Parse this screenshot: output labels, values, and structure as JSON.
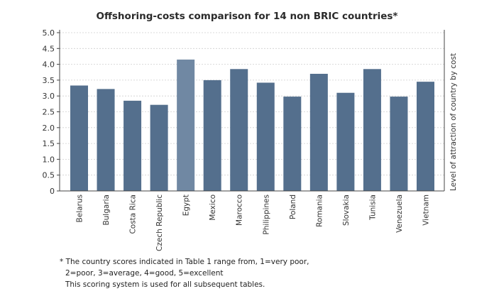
{
  "chart_data": {
    "type": "bar",
    "title": "Offshoring-costs comparison for 14 non BRIC countries*",
    "ylabel": "Level of attraction of country by cost",
    "xlabel": "",
    "ylim": [
      0,
      5
    ],
    "yticks": [
      "0",
      "0.5",
      "1.0",
      "1.5",
      "2.0",
      "2.5",
      "3.0",
      "3.5",
      "4.0",
      "4.5",
      "5.0"
    ],
    "grid": true,
    "categories": [
      "Belarus",
      "Bulgaria",
      "Costa Rica",
      "Czech Republic",
      "Egypt",
      "Mexico",
      "Marocco",
      "Philippines",
      "Poland",
      "Romania",
      "Slovakia",
      "Tunisia",
      "Venezuela",
      "Vietnam"
    ],
    "values": [
      3.33,
      3.22,
      2.85,
      2.72,
      4.15,
      3.5,
      3.85,
      3.42,
      2.98,
      3.7,
      3.1,
      3.85,
      2.98,
      3.45
    ],
    "highlight_index": 4,
    "colors": {
      "bar": "#546f8d",
      "highlight": "#7088a3"
    }
  },
  "footnote": {
    "line1": "* The country scores indicated in Table 1 range from, 1=very poor,",
    "line2": "2=poor, 3=average, 4=good, 5=excellent",
    "line3": "This scoring system is used for all subsequent tables."
  }
}
